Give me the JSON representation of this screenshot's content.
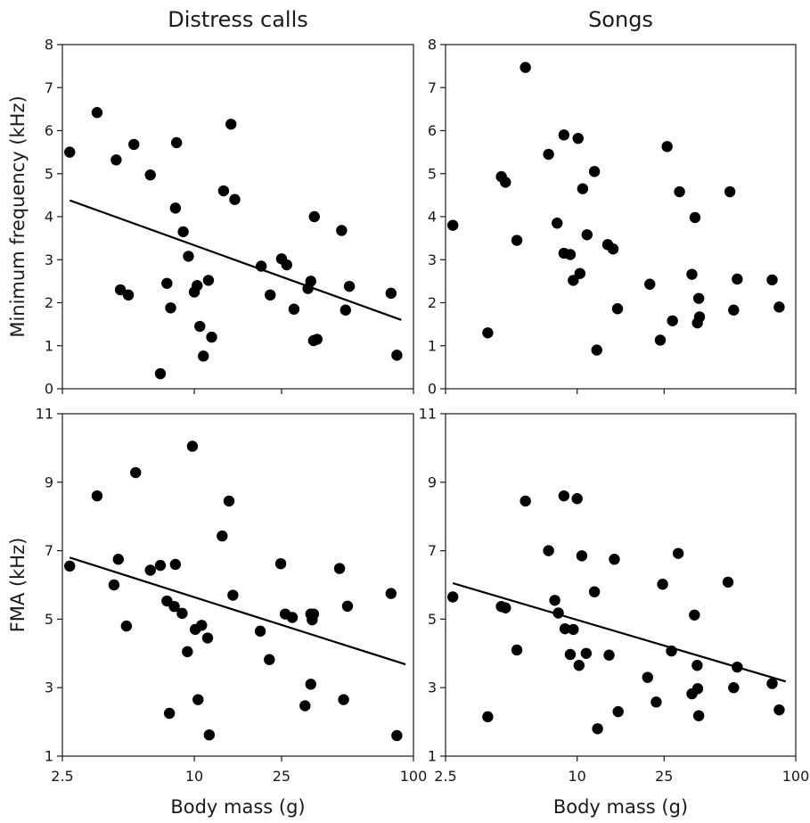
{
  "chart_data": [
    {
      "type": "scatter",
      "title": "Distress calls",
      "xlabel": "",
      "ylabel": "Minimum frequency (kHz)",
      "x_scale": "log",
      "xlim": [
        2.5,
        100
      ],
      "x_ticks": [
        2.5,
        10,
        25,
        100
      ],
      "ylim": [
        0,
        8
      ],
      "y_ticks": [
        0,
        1,
        2,
        3,
        4,
        5,
        6,
        7,
        8
      ],
      "grid": false,
      "points": [
        [
          2.7,
          5.5
        ],
        [
          3.6,
          6.42
        ],
        [
          4.4,
          5.32
        ],
        [
          4.6,
          2.3
        ],
        [
          5.0,
          2.18
        ],
        [
          5.3,
          5.68
        ],
        [
          6.3,
          4.97
        ],
        [
          7.0,
          0.35
        ],
        [
          7.5,
          2.45
        ],
        [
          7.8,
          1.88
        ],
        [
          8.2,
          4.2
        ],
        [
          8.3,
          5.72
        ],
        [
          8.9,
          3.65
        ],
        [
          9.4,
          3.08
        ],
        [
          10.0,
          2.25
        ],
        [
          10.3,
          2.4
        ],
        [
          10.6,
          1.45
        ],
        [
          11.0,
          0.76
        ],
        [
          11.6,
          2.52
        ],
        [
          12.0,
          1.2
        ],
        [
          13.6,
          4.6
        ],
        [
          14.7,
          6.15
        ],
        [
          15.3,
          4.4
        ],
        [
          20.2,
          2.85
        ],
        [
          22.2,
          2.18
        ],
        [
          25.0,
          3.02
        ],
        [
          26.4,
          2.88
        ],
        [
          28.5,
          1.85
        ],
        [
          33.0,
          2.33
        ],
        [
          34.0,
          2.5
        ],
        [
          35.0,
          1.12
        ],
        [
          35.3,
          4.0
        ],
        [
          36.3,
          1.15
        ],
        [
          47.0,
          3.68
        ],
        [
          49.0,
          1.83
        ],
        [
          51.0,
          2.38
        ],
        [
          79.0,
          2.22
        ],
        [
          84.0,
          0.78
        ]
      ],
      "trend": [
        [
          2.7,
          4.38
        ],
        [
          88.0,
          1.6
        ]
      ]
    },
    {
      "type": "scatter",
      "title": "Songs",
      "xlabel": "",
      "ylabel": "",
      "x_scale": "log",
      "xlim": [
        2.5,
        100
      ],
      "x_ticks": [
        2.5,
        10,
        25,
        100
      ],
      "ylim": [
        0,
        8
      ],
      "y_ticks": [
        0,
        1,
        2,
        3,
        4,
        5,
        6,
        7,
        8
      ],
      "grid": false,
      "points": [
        [
          2.7,
          3.8
        ],
        [
          3.9,
          1.3
        ],
        [
          4.5,
          4.93
        ],
        [
          4.7,
          4.8
        ],
        [
          5.3,
          3.45
        ],
        [
          5.8,
          7.47
        ],
        [
          7.4,
          5.45
        ],
        [
          8.1,
          3.85
        ],
        [
          8.7,
          5.9
        ],
        [
          8.7,
          3.15
        ],
        [
          9.3,
          3.12
        ],
        [
          9.6,
          2.52
        ],
        [
          10.1,
          5.82
        ],
        [
          10.3,
          2.68
        ],
        [
          10.6,
          4.65
        ],
        [
          11.1,
          3.58
        ],
        [
          12.0,
          5.05
        ],
        [
          12.3,
          0.9
        ],
        [
          13.8,
          3.35
        ],
        [
          14.6,
          3.25
        ],
        [
          15.3,
          1.86
        ],
        [
          21.5,
          2.43
        ],
        [
          24.0,
          1.13
        ],
        [
          25.8,
          5.63
        ],
        [
          27.3,
          1.58
        ],
        [
          29.4,
          4.58
        ],
        [
          33.5,
          2.66
        ],
        [
          34.6,
          3.98
        ],
        [
          35.5,
          1.53
        ],
        [
          36.0,
          2.1
        ],
        [
          36.3,
          1.67
        ],
        [
          50.0,
          4.58
        ],
        [
          52.0,
          1.83
        ],
        [
          54.0,
          2.55
        ],
        [
          78.0,
          2.53
        ],
        [
          84.0,
          1.9
        ]
      ]
    },
    {
      "type": "scatter",
      "title": "",
      "xlabel": "Body mass (g)",
      "ylabel": "FMA (kHz)",
      "x_scale": "log",
      "xlim": [
        2.5,
        100
      ],
      "x_ticks": [
        2.5,
        10,
        25,
        100
      ],
      "ylim": [
        1,
        11
      ],
      "y_ticks": [
        1,
        3,
        5,
        7,
        9,
        11
      ],
      "grid": false,
      "points": [
        [
          2.7,
          6.55
        ],
        [
          3.6,
          8.6
        ],
        [
          4.3,
          6.0
        ],
        [
          4.5,
          6.75
        ],
        [
          4.9,
          4.8
        ],
        [
          5.4,
          9.28
        ],
        [
          6.3,
          6.43
        ],
        [
          7.0,
          6.57
        ],
        [
          7.5,
          5.53
        ],
        [
          7.7,
          2.25
        ],
        [
          8.1,
          5.37
        ],
        [
          8.2,
          6.6
        ],
        [
          8.8,
          5.17
        ],
        [
          9.3,
          4.05
        ],
        [
          9.8,
          10.05
        ],
        [
          10.1,
          4.7
        ],
        [
          10.4,
          2.65
        ],
        [
          10.8,
          4.82
        ],
        [
          11.5,
          4.45
        ],
        [
          11.7,
          1.62
        ],
        [
          13.4,
          7.43
        ],
        [
          14.4,
          8.45
        ],
        [
          15.0,
          5.7
        ],
        [
          20.0,
          4.65
        ],
        [
          22.0,
          3.82
        ],
        [
          24.8,
          6.62
        ],
        [
          26.0,
          5.15
        ],
        [
          28.0,
          5.05
        ],
        [
          32.0,
          2.47
        ],
        [
          34.0,
          5.15
        ],
        [
          34.0,
          3.1
        ],
        [
          34.5,
          4.98
        ],
        [
          35.0,
          5.15
        ],
        [
          46.0,
          6.48
        ],
        [
          48.0,
          2.65
        ],
        [
          50.0,
          5.38
        ],
        [
          79.0,
          5.75
        ],
        [
          84.0,
          1.6
        ]
      ],
      "trend": [
        [
          2.7,
          6.8
        ],
        [
          92.0,
          3.68
        ]
      ]
    },
    {
      "type": "scatter",
      "title": "",
      "xlabel": "Body mass (g)",
      "ylabel": "",
      "x_scale": "log",
      "xlim": [
        2.5,
        100
      ],
      "x_ticks": [
        2.5,
        10,
        25,
        100
      ],
      "ylim": [
        1,
        11
      ],
      "y_ticks": [
        1,
        3,
        5,
        7,
        9,
        11
      ],
      "grid": false,
      "points": [
        [
          2.7,
          5.65
        ],
        [
          3.9,
          2.15
        ],
        [
          4.5,
          5.37
        ],
        [
          4.7,
          5.33
        ],
        [
          5.3,
          4.1
        ],
        [
          5.8,
          8.45
        ],
        [
          7.4,
          7.0
        ],
        [
          7.9,
          5.55
        ],
        [
          8.2,
          5.18
        ],
        [
          8.7,
          8.6
        ],
        [
          8.8,
          4.72
        ],
        [
          9.3,
          3.97
        ],
        [
          9.6,
          4.7
        ],
        [
          10.0,
          8.52
        ],
        [
          10.2,
          3.65
        ],
        [
          10.5,
          6.85
        ],
        [
          11.0,
          4.0
        ],
        [
          12.0,
          5.8
        ],
        [
          12.4,
          1.8
        ],
        [
          14.0,
          3.95
        ],
        [
          14.8,
          6.75
        ],
        [
          15.4,
          2.3
        ],
        [
          21.0,
          3.3
        ],
        [
          23.0,
          2.58
        ],
        [
          24.6,
          6.02
        ],
        [
          27.0,
          4.07
        ],
        [
          29.0,
          6.92
        ],
        [
          33.5,
          2.82
        ],
        [
          34.4,
          5.12
        ],
        [
          35.4,
          3.65
        ],
        [
          35.6,
          2.97
        ],
        [
          36.0,
          2.18
        ],
        [
          49.0,
          6.08
        ],
        [
          52.0,
          3.0
        ],
        [
          54.0,
          3.6
        ],
        [
          78.0,
          3.12
        ],
        [
          84.0,
          2.35
        ]
      ],
      "trend": [
        [
          2.7,
          6.05
        ],
        [
          90.0,
          3.18
        ]
      ]
    }
  ]
}
